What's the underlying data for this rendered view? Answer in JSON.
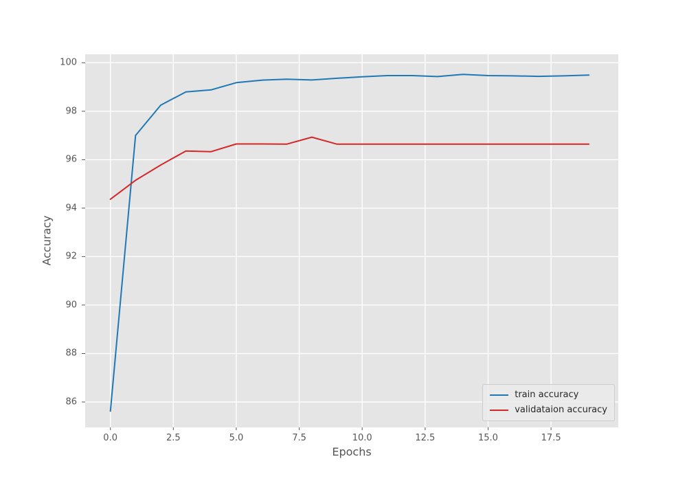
{
  "chart_data": {
    "type": "line",
    "title": "",
    "xlabel": "Epochs",
    "ylabel": "Accuracy",
    "x": [
      0,
      1,
      2,
      3,
      4,
      5,
      6,
      7,
      8,
      9,
      10,
      11,
      12,
      13,
      14,
      15,
      16,
      17,
      18,
      19
    ],
    "series": [
      {
        "name": "train accuracy",
        "color": "#1f77b4",
        "values": [
          85.62,
          97.0,
          98.25,
          98.8,
          98.88,
          99.18,
          99.28,
          99.32,
          99.29,
          99.36,
          99.42,
          99.47,
          99.47,
          99.43,
          99.52,
          99.47,
          99.46,
          99.44,
          99.46,
          99.49
        ]
      },
      {
        "name": "validataion accuracy",
        "color": "#d62728",
        "values": [
          94.37,
          95.15,
          95.78,
          96.36,
          96.33,
          96.65,
          96.65,
          96.64,
          96.93,
          96.64,
          96.64,
          96.64,
          96.64,
          96.64,
          96.64,
          96.64,
          96.64,
          96.64,
          96.64,
          96.64
        ]
      }
    ],
    "xlim": [
      -1.0,
      20.17
    ],
    "ylim": [
      84.95,
      100.35
    ],
    "xticks": [
      0.0,
      2.5,
      5.0,
      7.5,
      10.0,
      12.5,
      15.0,
      17.5
    ],
    "xtick_labels": [
      "0.0",
      "2.5",
      "5.0",
      "7.5",
      "10.0",
      "12.5",
      "15.0",
      "17.5"
    ],
    "yticks": [
      86,
      88,
      90,
      92,
      94,
      96,
      98,
      100
    ],
    "ytick_labels": [
      "86",
      "88",
      "90",
      "92",
      "94",
      "96",
      "98",
      "100"
    ],
    "grid": true,
    "legend_position": "lower right",
    "style": {
      "figure_bg": "#ffffff",
      "plot_bg": "#e5e5e5",
      "grid_color": "#ffffff",
      "tick_color": "#555555",
      "label_color": "#555555",
      "legend_text_color": "#262626",
      "legend_border_color": "#cccccc",
      "line_width": 2
    }
  }
}
